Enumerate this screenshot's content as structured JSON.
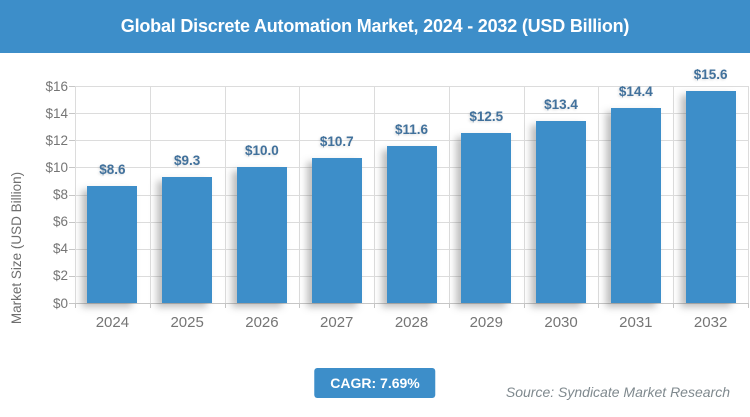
{
  "header": {
    "title": "Global Discrete Automation Market, 2024 - 2032 (USD Billion)"
  },
  "chart_data": {
    "type": "bar",
    "title": "Global Discrete Automation Market, 2024 - 2032 (USD Billion)",
    "categories": [
      "2024",
      "2025",
      "2026",
      "2027",
      "2028",
      "2029",
      "2030",
      "2031",
      "2032"
    ],
    "values": [
      8.6,
      9.3,
      10.0,
      10.7,
      11.6,
      12.5,
      13.4,
      14.4,
      15.6
    ],
    "value_labels": [
      "$8.6",
      "$9.3",
      "$10.0",
      "$10.7",
      "$11.6",
      "$12.5",
      "$13.4",
      "$14.4",
      "$15.6"
    ],
    "xlabel": "",
    "ylabel": "Market Size (USD Billion)",
    "ylim": [
      0,
      16
    ],
    "ytick_step": 2,
    "ytick_labels": [
      "$0",
      "$2",
      "$4",
      "$6",
      "$8",
      "$10",
      "$12",
      "$14",
      "$16"
    ],
    "grid": true,
    "legend": "none",
    "bar_color": "#3d8ec9",
    "value_label_color": "#41719c",
    "axis_text_color": "#757575",
    "gridline_color": "#dcdcdc"
  },
  "footer": {
    "cagr_label": "CAGR: 7.69%",
    "source": "Source: Syndicate Market Research"
  },
  "colors": {
    "accent_blue": "#3d8ec9",
    "header_text": "#ffffff",
    "background": "#ffffff"
  }
}
